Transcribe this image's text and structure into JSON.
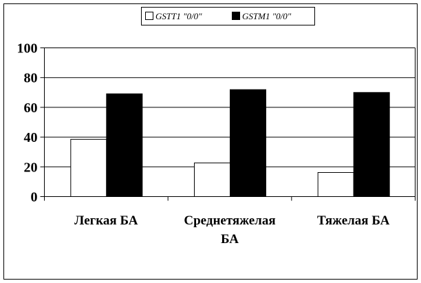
{
  "chart_data": {
    "type": "bar",
    "title": "",
    "xlabel": "",
    "ylabel": "",
    "ylim": [
      0,
      100
    ],
    "yticks": [
      "0",
      "20",
      "40",
      "60",
      "80",
      "100"
    ],
    "grid": true,
    "legend_position": "top",
    "categories": [
      [
        "Легкая БА"
      ],
      [
        "Среднетяжелая",
        "БА"
      ],
      [
        "Тяжелая БА"
      ]
    ],
    "series": [
      {
        "name": "GSTT1 \"0/0\"",
        "color": "#ffffff",
        "values": [
          38.5,
          22.6,
          16.2
        ]
      },
      {
        "name": "GSTM1 \"0/0\"",
        "color": "#000000",
        "values": [
          69.1,
          71.9,
          70.0
        ]
      }
    ]
  }
}
